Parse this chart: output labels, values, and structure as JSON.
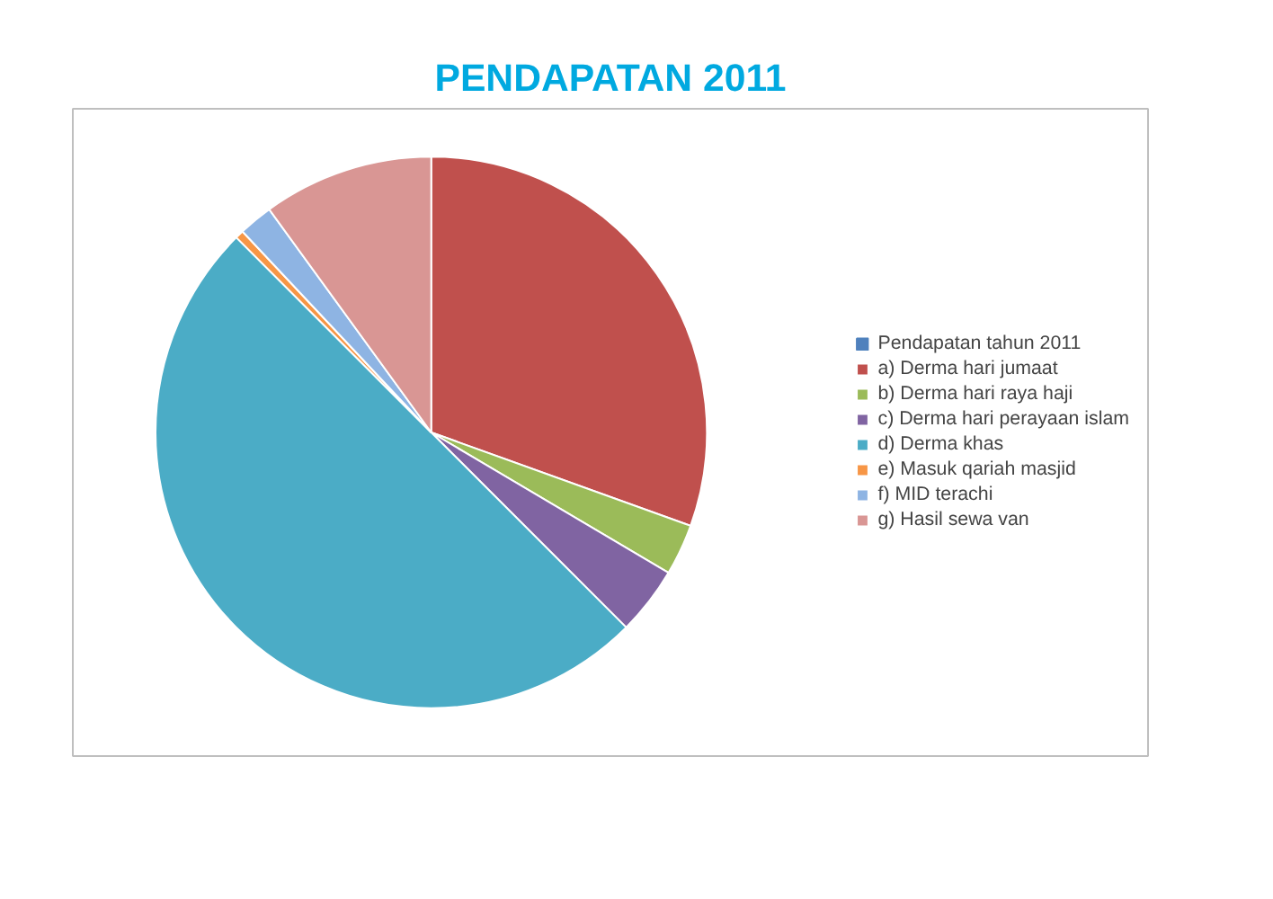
{
  "chart_data": {
    "type": "pie",
    "title": "PENDAPATAN 2011",
    "categories": [
      "Pendapatan tahun 2011",
      "a) Derma hari jumaat",
      "b) Derma hari raya haji",
      "c) Derma hari perayaan islam",
      "d) Derma khas",
      "e) Masuk qariah masjid",
      "f) MID terachi",
      "g) Hasil sewa van"
    ],
    "values": [
      0,
      30.5,
      3,
      4,
      50,
      0.5,
      2,
      10
    ],
    "colors": [
      "#4f81bd",
      "#c0504d",
      "#9bbb59",
      "#8064a2",
      "#4bacc6",
      "#f79646",
      "#8eb4e3",
      "#d99694"
    ],
    "legend": "right"
  }
}
